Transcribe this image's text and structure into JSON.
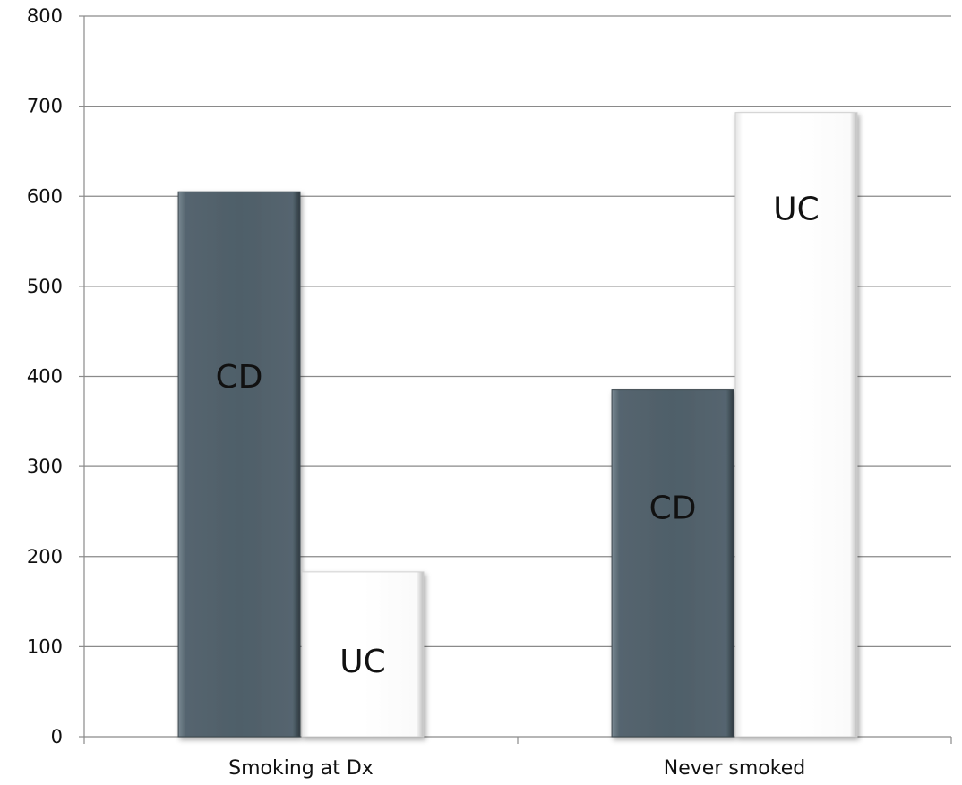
{
  "chart_data": {
    "type": "bar",
    "title": "",
    "xlabel": "",
    "ylabel": "",
    "ylim": [
      0,
      800
    ],
    "yticks": [
      0,
      100,
      200,
      300,
      400,
      500,
      600,
      700,
      800
    ],
    "grid": true,
    "legend": "none",
    "categories": [
      "Smoking at Dx",
      "Never smoked"
    ],
    "series": [
      {
        "name": "CD",
        "values": [
          605,
          385
        ],
        "labels": [
          "CD",
          "CD"
        ],
        "color": "#4f5f69"
      },
      {
        "name": "UC",
        "values": [
          183,
          693
        ],
        "labels": [
          "UC",
          "UC"
        ],
        "color": "#ffffff"
      }
    ]
  }
}
